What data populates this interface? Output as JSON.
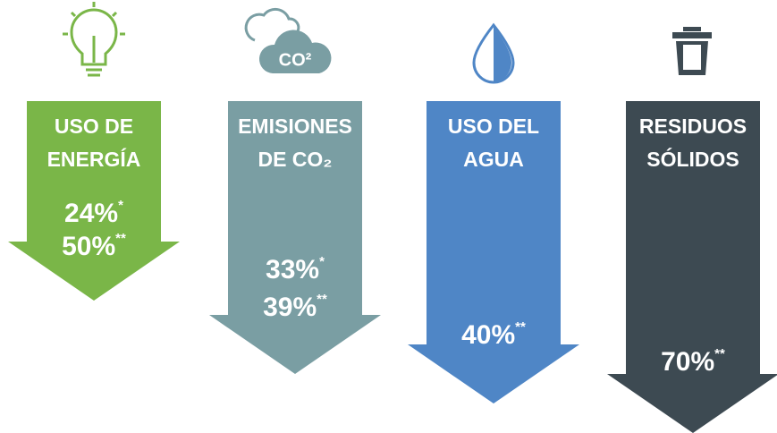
{
  "items": [
    {
      "title": [
        "USO DE",
        "ENERGÍA"
      ],
      "values": [
        {
          "text": "24%",
          "note": "*"
        },
        {
          "text": "50%",
          "note": "**"
        }
      ]
    },
    {
      "title": [
        "EMISIONES",
        "DE CO₂"
      ],
      "icon_text": "CO²",
      "values": [
        {
          "text": "33%",
          "note": "*"
        },
        {
          "text": "39%",
          "note": "**"
        }
      ]
    },
    {
      "title": [
        "USO DEL",
        "AGUA"
      ],
      "values": [
        {
          "text": "40%",
          "note": "**"
        }
      ]
    },
    {
      "title": [
        "RESIDUOS",
        "SÓLIDOS"
      ],
      "values": [
        {
          "text": "70%",
          "note": "**"
        }
      ]
    }
  ]
}
